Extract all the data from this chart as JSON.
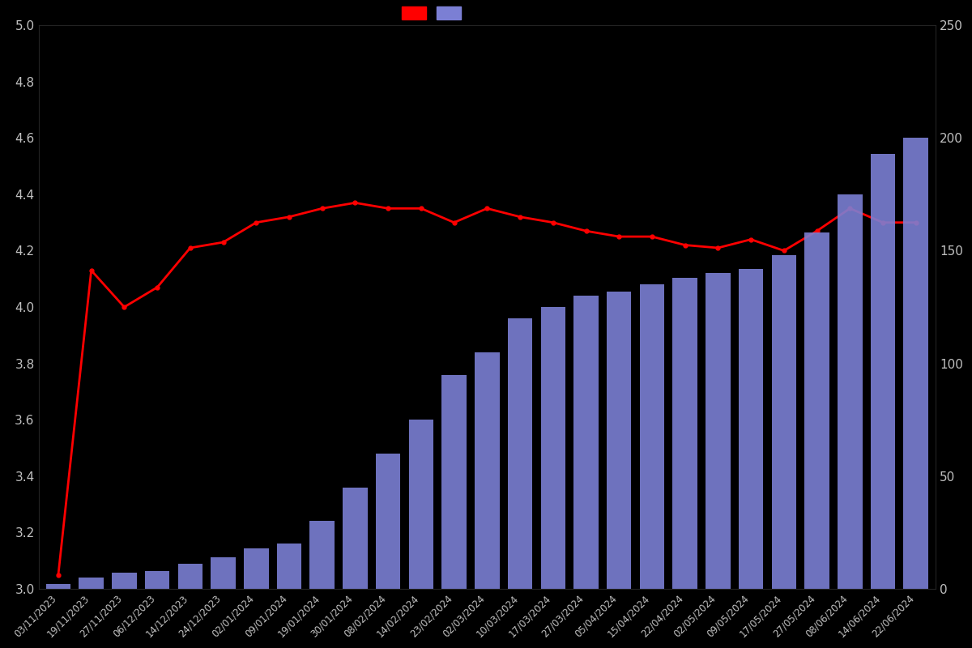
{
  "dates": [
    "03/11/2023",
    "19/11/2023",
    "27/11/2023",
    "06/12/2023",
    "14/12/2023",
    "24/12/2023",
    "02/01/2024",
    "09/01/2024",
    "19/01/2024",
    "30/01/2024",
    "08/02/2024",
    "14/02/2024",
    "23/02/2024",
    "02/03/2024",
    "10/03/2024",
    "17/03/2024",
    "27/03/2024",
    "05/04/2024",
    "15/04/2024",
    "22/04/2024",
    "02/05/2024",
    "09/05/2024",
    "17/05/2024",
    "27/05/2024",
    "08/06/2024",
    "14/06/2024",
    "22/06/2024"
  ],
  "ratings": [
    3.05,
    4.13,
    4.0,
    4.07,
    4.21,
    4.23,
    4.3,
    4.32,
    4.35,
    4.37,
    4.35,
    4.35,
    4.3,
    4.35,
    4.32,
    4.3,
    4.27,
    4.25,
    4.25,
    4.22,
    4.21,
    4.24,
    4.2,
    4.27,
    4.35,
    4.3,
    4.3
  ],
  "counts": [
    2,
    5,
    7,
    8,
    11,
    14,
    18,
    20,
    30,
    45,
    60,
    75,
    95,
    105,
    120,
    125,
    130,
    132,
    135,
    138,
    140,
    142,
    148,
    158,
    175,
    193,
    200
  ],
  "bar_color": "#7B7FD4",
  "line_color": "#ff0000",
  "background_color": "#000000",
  "text_color": "#c0c0c0",
  "left_ylim": [
    3.0,
    5.0
  ],
  "right_ylim": [
    0,
    250
  ],
  "left_yticks": [
    3.0,
    3.2,
    3.4,
    3.6,
    3.8,
    4.0,
    4.2,
    4.4,
    4.6,
    4.8,
    5.0
  ],
  "right_yticks": [
    0,
    50,
    100,
    150,
    200,
    250
  ]
}
